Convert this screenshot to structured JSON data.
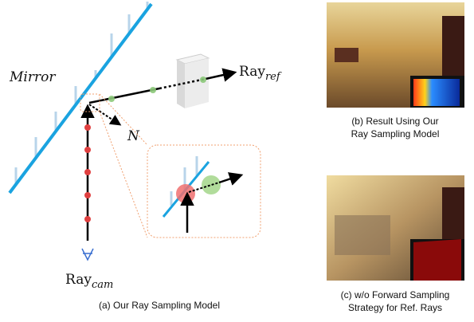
{
  "diagram": {
    "mirror_label": "Mirror",
    "ray_ref": {
      "base": "Ray",
      "sub": "ref"
    },
    "normal_label": "N",
    "ray_cam": {
      "base": "Ray",
      "sub": "cam"
    },
    "caption": "(a) Our Ray Sampling Model"
  },
  "results": [
    {
      "caption_lines": [
        "(b) Result Using Our",
        "Ray Sampling Model"
      ]
    },
    {
      "caption_lines": [
        "(c) w/o Forward Sampling",
        "Strategy for Ref. Rays"
      ]
    }
  ]
}
